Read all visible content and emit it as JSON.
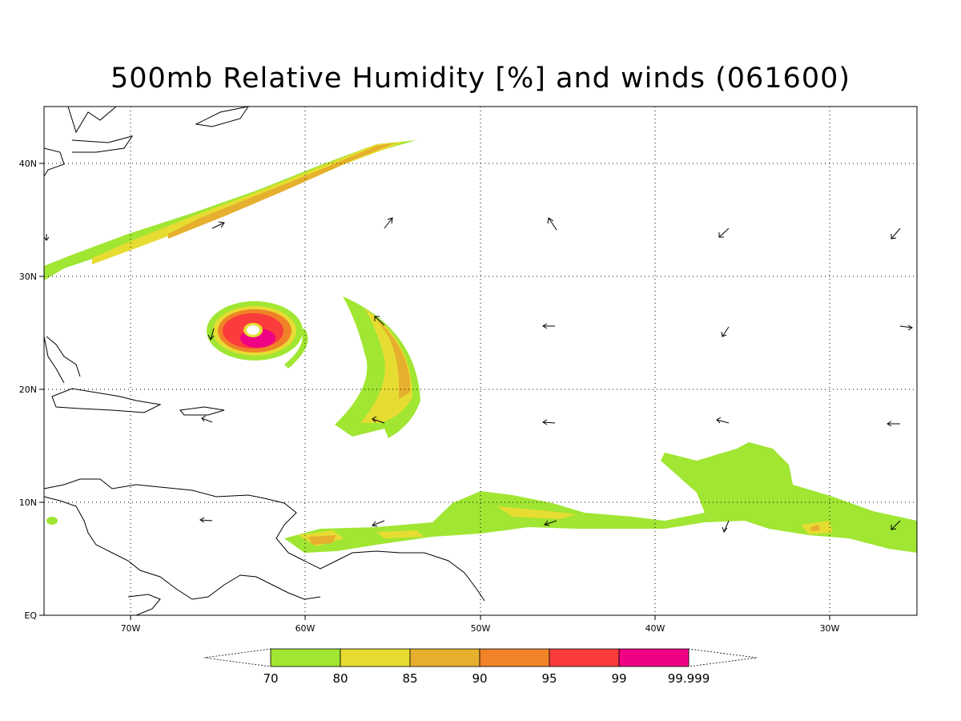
{
  "title": "500mb Relative Humidity [%] and winds (061600)",
  "axes": {
    "x_ticks": [
      "70W",
      "60W",
      "50W",
      "40W",
      "30W"
    ],
    "y_ticks": [
      "EQ",
      "10N",
      "20N",
      "30N",
      "40N"
    ]
  },
  "legend": {
    "labels": [
      "70",
      "80",
      "85",
      "90",
      "95",
      "99",
      "99.999"
    ],
    "colors": [
      "#a0e632",
      "#e6dc32",
      "#e6af2d",
      "#f08228",
      "#fa3c3c",
      "#f00082"
    ]
  },
  "colors": {
    "level_70": "#a0e632",
    "level_80": "#e6dc32",
    "level_85": "#e6af2d",
    "level_90": "#f08228",
    "level_95": "#fa3c3c",
    "level_99": "#f00082"
  }
}
